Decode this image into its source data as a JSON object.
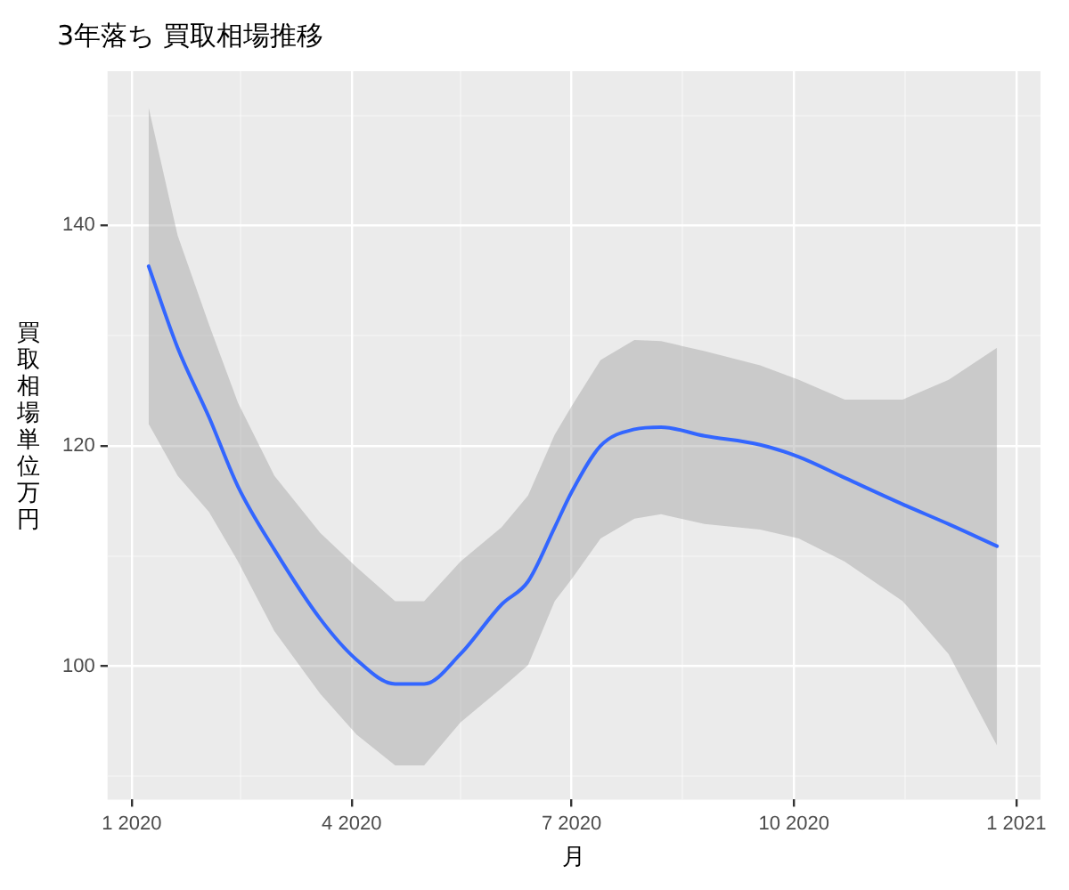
{
  "chart_data": {
    "type": "line",
    "title": "3年落ち 買取相場推移",
    "xlabel": "月",
    "ylabel": "買取相場単位万円",
    "x": [
      "2020-01-08",
      "2020-01-20",
      "2020-02-02",
      "2020-02-14",
      "2020-02-29",
      "2020-03-19",
      "2020-04-03",
      "2020-04-19",
      "2020-05-01",
      "2020-05-16",
      "2020-06-02",
      "2020-06-13",
      "2020-06-24",
      "2020-07-01",
      "2020-07-13",
      "2020-07-27",
      "2020-08-07",
      "2020-08-25",
      "2020-09-17",
      "2020-10-03",
      "2020-10-22",
      "2020-11-15",
      "2020-12-04",
      "2020-12-24"
    ],
    "series": [
      {
        "color": "#3366ff",
        "values": [
          136.3,
          128.9,
          122.6,
          116.3,
          110.6,
          104.3,
          100.6,
          98.4,
          98.4,
          101.1,
          105.6,
          107.7,
          112.6,
          115.8,
          120.0,
          121.5,
          121.7,
          120.9,
          120.1,
          119.0,
          117.1,
          114.7,
          112.9,
          110.9
        ],
        "lower": [
          122.0,
          117.3,
          114.0,
          109.5,
          103.2,
          97.5,
          93.8,
          91.0,
          91.0,
          94.9,
          98.0,
          100.1,
          105.9,
          107.9,
          111.6,
          113.4,
          113.8,
          112.9,
          112.4,
          111.6,
          109.5,
          105.9,
          101.1,
          92.8
        ],
        "upper": [
          150.7,
          139.1,
          131.0,
          123.9,
          117.3,
          112.1,
          109.0,
          105.9,
          105.9,
          109.5,
          112.6,
          115.5,
          121.0,
          123.6,
          127.8,
          129.6,
          129.5,
          128.6,
          127.3,
          126.0,
          124.2,
          124.2,
          126.0,
          128.9
        ]
      }
    ],
    "xlim": [
      "2019-12-22",
      "2021-01-11"
    ],
    "xticks": [
      {
        "value": "2020-01-01",
        "label": "1 2020"
      },
      {
        "value": "2020-02-15",
        "label": null
      },
      {
        "value": "2020-04-01",
        "label": "4 2020"
      },
      {
        "value": "2020-05-16",
        "label": null
      },
      {
        "value": "2020-07-01",
        "label": "7 2020"
      },
      {
        "value": "2020-08-16",
        "label": null
      },
      {
        "value": "2020-10-01",
        "label": "10 2020"
      },
      {
        "value": "2020-11-16",
        "label": null
      },
      {
        "value": "2021-01-01",
        "label": "1 2021"
      }
    ],
    "ylim": [
      87.9,
      154
    ],
    "yticks": [
      {
        "value": 90,
        "label": null
      },
      100,
      {
        "value": 110,
        "label": null
      },
      120,
      {
        "value": 130,
        "label": null
      },
      140,
      {
        "value": 150,
        "label": null
      }
    ],
    "grid": true,
    "marker": "none",
    "line_style": "solid",
    "legend": false
  }
}
